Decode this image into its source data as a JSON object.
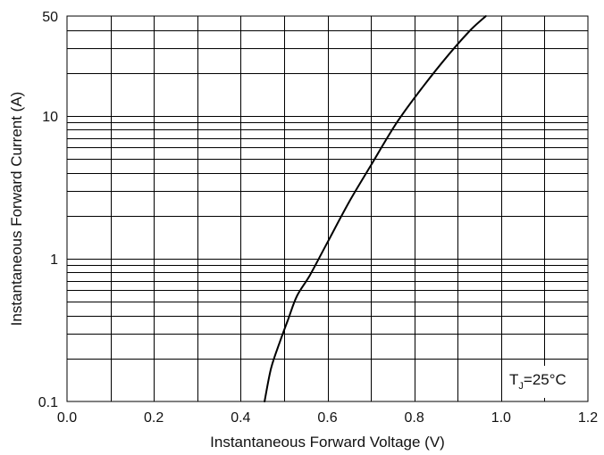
{
  "chart_data": {
    "type": "line",
    "title": "",
    "xlabel": "Instantaneous Forward Voltage (V)",
    "ylabel": "Instantaneous Forward Current (A)",
    "xlim": [
      0.0,
      1.2
    ],
    "ylim": [
      0.1,
      50
    ],
    "yscale": "log",
    "grid": true,
    "x_ticks": [
      "0.0",
      "0.2",
      "0.4",
      "0.6",
      "0.8",
      "1.0",
      "1.2"
    ],
    "y_ticks": [
      "0.1",
      "1",
      "10",
      "50"
    ],
    "series": [
      {
        "x": [
          0.455,
          0.47,
          0.49,
          0.51,
          0.53,
          0.56,
          0.6,
          0.65,
          0.7,
          0.76,
          0.82,
          0.88,
          0.93,
          0.965
        ],
        "y": [
          0.1,
          0.17,
          0.26,
          0.38,
          0.55,
          0.77,
          1.3,
          2.5,
          4.5,
          9.0,
          16.0,
          27.0,
          40.0,
          50.0
        ]
      }
    ],
    "annotation": {
      "main": "T",
      "sub": "J",
      "rest": "=25°C"
    }
  }
}
